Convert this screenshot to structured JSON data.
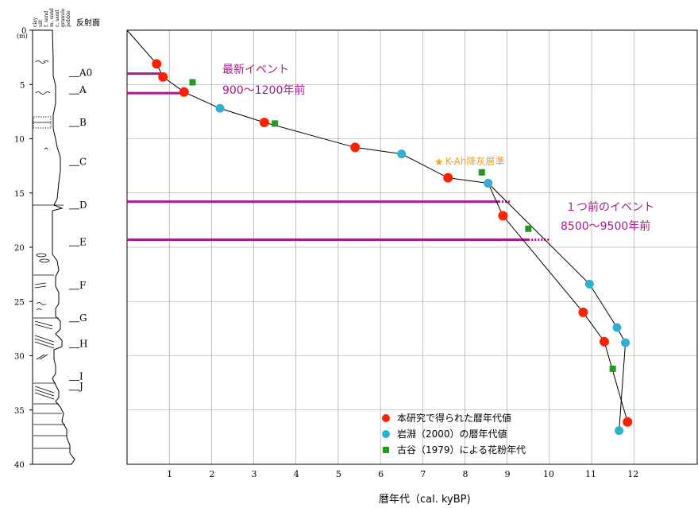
{
  "column": {
    "unit_label": "(m)",
    "grain_labels": [
      "clay",
      "silt",
      "f. sand",
      "m. sand",
      "c. sand",
      "granule",
      "pebble"
    ],
    "reflector_title": "反射面",
    "depth_ticks": [
      0,
      5,
      10,
      15,
      20,
      25,
      30,
      35,
      40
    ],
    "reflectors": [
      {
        "label": "A0",
        "depth": 4.2
      },
      {
        "label": "A",
        "depth": 5.8
      },
      {
        "label": "B",
        "depth": 8.8
      },
      {
        "label": "C",
        "depth": 12.4
      },
      {
        "label": "D",
        "depth": 16.4
      },
      {
        "label": "E",
        "depth": 19.8
      },
      {
        "label": "F",
        "depth": 23.8
      },
      {
        "label": "G",
        "depth": 26.8
      },
      {
        "label": "H",
        "depth": 29.2
      },
      {
        "label": "I",
        "depth": 32.2
      },
      {
        "label": "J",
        "depth": 33.1
      }
    ]
  },
  "chart_data": {
    "type": "scatter",
    "xlabel": "暦年代（cal. kyBP)",
    "ylabel": "",
    "xlim": [
      0,
      13.5
    ],
    "ylim": [
      0,
      40
    ],
    "y_inverted": true,
    "x_ticks": [
      1,
      2,
      3,
      4,
      5,
      6,
      7,
      8,
      9,
      10,
      11,
      12
    ],
    "grid": true,
    "legend_position": "bottom-right",
    "series": [
      {
        "name": "本研究で得られた暦年代値",
        "marker": "circle",
        "color": "#ff2200",
        "points": [
          [
            0.7,
            3.1
          ],
          [
            0.85,
            4.3
          ],
          [
            1.35,
            5.7
          ],
          [
            3.25,
            8.5
          ],
          [
            5.4,
            10.8
          ],
          [
            7.6,
            13.6
          ],
          [
            8.9,
            17.1
          ],
          [
            10.8,
            26.0
          ],
          [
            11.3,
            28.7
          ],
          [
            11.85,
            36.1
          ]
        ]
      },
      {
        "name": "岩淵（2000）の暦年代値",
        "marker": "circle",
        "color": "#2fb0d0",
        "points": [
          [
            2.2,
            7.2
          ],
          [
            6.5,
            11.4
          ],
          [
            8.55,
            14.1
          ],
          [
            10.95,
            23.4
          ],
          [
            11.6,
            27.4
          ],
          [
            11.8,
            28.8
          ],
          [
            11.65,
            36.9
          ]
        ]
      },
      {
        "name": "古谷（1979）による花粉年代",
        "marker": "square",
        "color": "#229922",
        "points": [
          [
            1.55,
            4.8
          ],
          [
            3.5,
            8.6
          ],
          [
            8.4,
            13.1
          ],
          [
            9.5,
            18.3
          ],
          [
            11.5,
            31.2
          ]
        ]
      }
    ],
    "curve_upper": [
      [
        0,
        0
      ],
      [
        0.7,
        3.1
      ],
      [
        0.85,
        4.3
      ],
      [
        1.35,
        5.7
      ],
      [
        2.2,
        7.2
      ],
      [
        3.25,
        8.5
      ],
      [
        5.4,
        10.8
      ],
      [
        6.5,
        11.4
      ],
      [
        7.6,
        13.6
      ],
      [
        8.55,
        14.1
      ]
    ],
    "curve_branch_a": [
      [
        8.55,
        14.1
      ],
      [
        8.9,
        17.1
      ],
      [
        10.8,
        26.0
      ],
      [
        11.3,
        28.7
      ],
      [
        11.85,
        36.1
      ]
    ],
    "curve_branch_b": [
      [
        8.55,
        14.1
      ],
      [
        10.95,
        23.4
      ],
      [
        11.6,
        27.4
      ],
      [
        11.8,
        28.8
      ],
      [
        11.65,
        36.9
      ]
    ],
    "event_lines": [
      {
        "depth": 4.0,
        "x_end": 0.85
      },
      {
        "depth": 5.8,
        "x_end": 1.35
      },
      {
        "depth": 15.8,
        "x_end": 8.8,
        "dotted_to": 9.1
      },
      {
        "depth": 19.3,
        "x_end": 9.5,
        "dotted_to": 10.0
      }
    ],
    "annotations": [
      {
        "id": "latest",
        "title": "最新イベント",
        "range": "900～1200年前",
        "color": "#aa1a8f"
      },
      {
        "id": "previous",
        "title": "１つ前のイベント",
        "range": "8500～9500年前",
        "color": "#aa1a8f"
      },
      {
        "id": "kah",
        "text": "K-Ah降灰層準",
        "color": "#f0a020"
      }
    ]
  }
}
